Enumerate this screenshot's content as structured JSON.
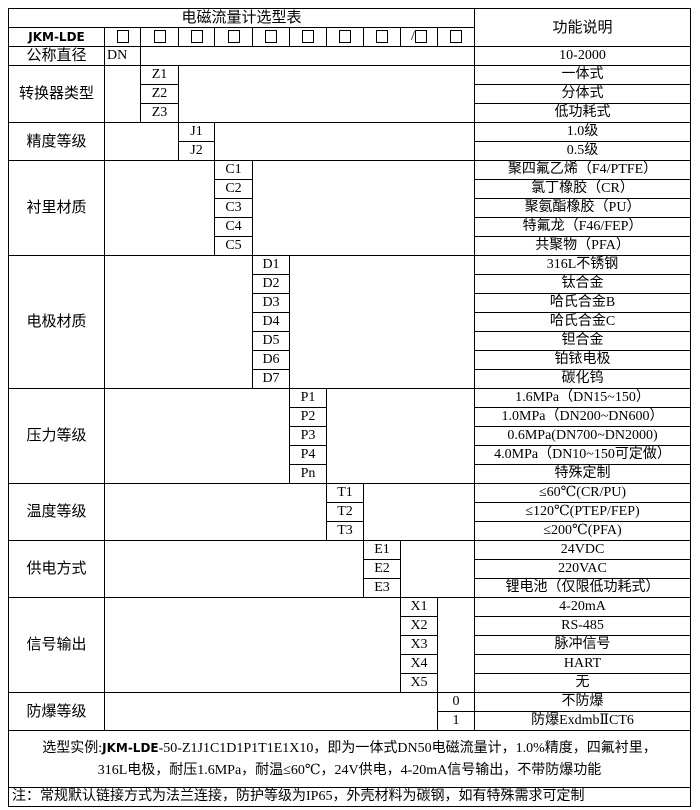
{
  "title": "电磁流量计选型表",
  "function_header": "功能说明",
  "model_prefix": "JKM-LDE",
  "code_slots": [
    "□",
    "□",
    "□",
    "□",
    "□",
    "□",
    "□",
    "□",
    "/□",
    "□"
  ],
  "nominal_diameter": {
    "label": "公称直径",
    "code": "DN",
    "function": "10-2000"
  },
  "groups": [
    {
      "label": "转换器类型",
      "col": 2,
      "items": [
        {
          "code": "Z1",
          "function": "一体式"
        },
        {
          "code": "Z2",
          "function": "分体式"
        },
        {
          "code": "Z3",
          "function": "低功耗式"
        }
      ]
    },
    {
      "label": "精度等级",
      "col": 3,
      "items": [
        {
          "code": "J1",
          "function": "1.0级"
        },
        {
          "code": "J2",
          "function": "0.5级"
        }
      ]
    },
    {
      "label": "衬里材质",
      "col": 4,
      "items": [
        {
          "code": "C1",
          "function": "聚四氟乙烯（F4/PTFE）"
        },
        {
          "code": "C2",
          "function": "氯丁橡胶（CR）"
        },
        {
          "code": "C3",
          "function": "聚氨酯橡胶（PU）"
        },
        {
          "code": "C4",
          "function": "特氟龙（F46/FEP）"
        },
        {
          "code": "C5",
          "function": "共聚物（PFA）"
        }
      ]
    },
    {
      "label": "电极材质",
      "col": 5,
      "items": [
        {
          "code": "D1",
          "function": "316L不锈钢"
        },
        {
          "code": "D2",
          "function": "钛合金"
        },
        {
          "code": "D3",
          "function": "哈氏合金B"
        },
        {
          "code": "D4",
          "function": "哈氏合金C"
        },
        {
          "code": "D5",
          "function": "钽合金"
        },
        {
          "code": "D6",
          "function": "铂铱电极"
        },
        {
          "code": "D7",
          "function": "碳化钨"
        }
      ]
    },
    {
      "label": "压力等级",
      "col": 6,
      "items": [
        {
          "code": "P1",
          "function": "1.6MPa（DN15~150）"
        },
        {
          "code": "P2",
          "function": "1.0MPa（DN200~DN600）"
        },
        {
          "code": "P3",
          "function": "0.6MPa(DN700~DN2000)"
        },
        {
          "code": "P4",
          "function": "4.0MPa（DN10~150可定做）"
        },
        {
          "code": "Pn",
          "function": "特殊定制"
        }
      ]
    },
    {
      "label": "温度等级",
      "col": 7,
      "items": [
        {
          "code": "T1",
          "function": "≤60℃(CR/PU)"
        },
        {
          "code": "T2",
          "function": "≤120℃(PTEP/FEP)"
        },
        {
          "code": "T3",
          "function": "≤200℃(PFA)"
        }
      ]
    },
    {
      "label": "供电方式",
      "col": 8,
      "items": [
        {
          "code": "E1",
          "function": "24VDC"
        },
        {
          "code": "E2",
          "function": "220VAC"
        },
        {
          "code": "E3",
          "function": "锂电池（仅限低功耗式）"
        }
      ]
    },
    {
      "label": "信号输出",
      "col": 9,
      "items": [
        {
          "code": "X1",
          "function": "4-20mA"
        },
        {
          "code": "X2",
          "function": "RS-485"
        },
        {
          "code": "X3",
          "function": "脉冲信号"
        },
        {
          "code": "X4",
          "function": "HART"
        },
        {
          "code": "X5",
          "function": "无"
        }
      ]
    },
    {
      "label": "防爆等级",
      "col": 10,
      "items": [
        {
          "code": "0",
          "function": "不防爆"
        },
        {
          "code": "1",
          "function": "防爆ExdmbⅡCT6"
        }
      ]
    }
  ],
  "example": {
    "prefix": "选型实例:",
    "model": "JKM-LDE",
    "line1_rest": "-50-Z1J1C1D1P1T1E1X10，即为一体式DN50电磁流量计，1.0%精度，四氟衬里，",
    "line2": "316L电极，耐压1.6MPa，耐温≤60℃，24V供电，4-20mA信号输出，不带防爆功能"
  },
  "note": "注：常规默认链接方式为法兰连接，防护等级为IP65，外壳材料为碳钢，如有特殊需求可定制"
}
